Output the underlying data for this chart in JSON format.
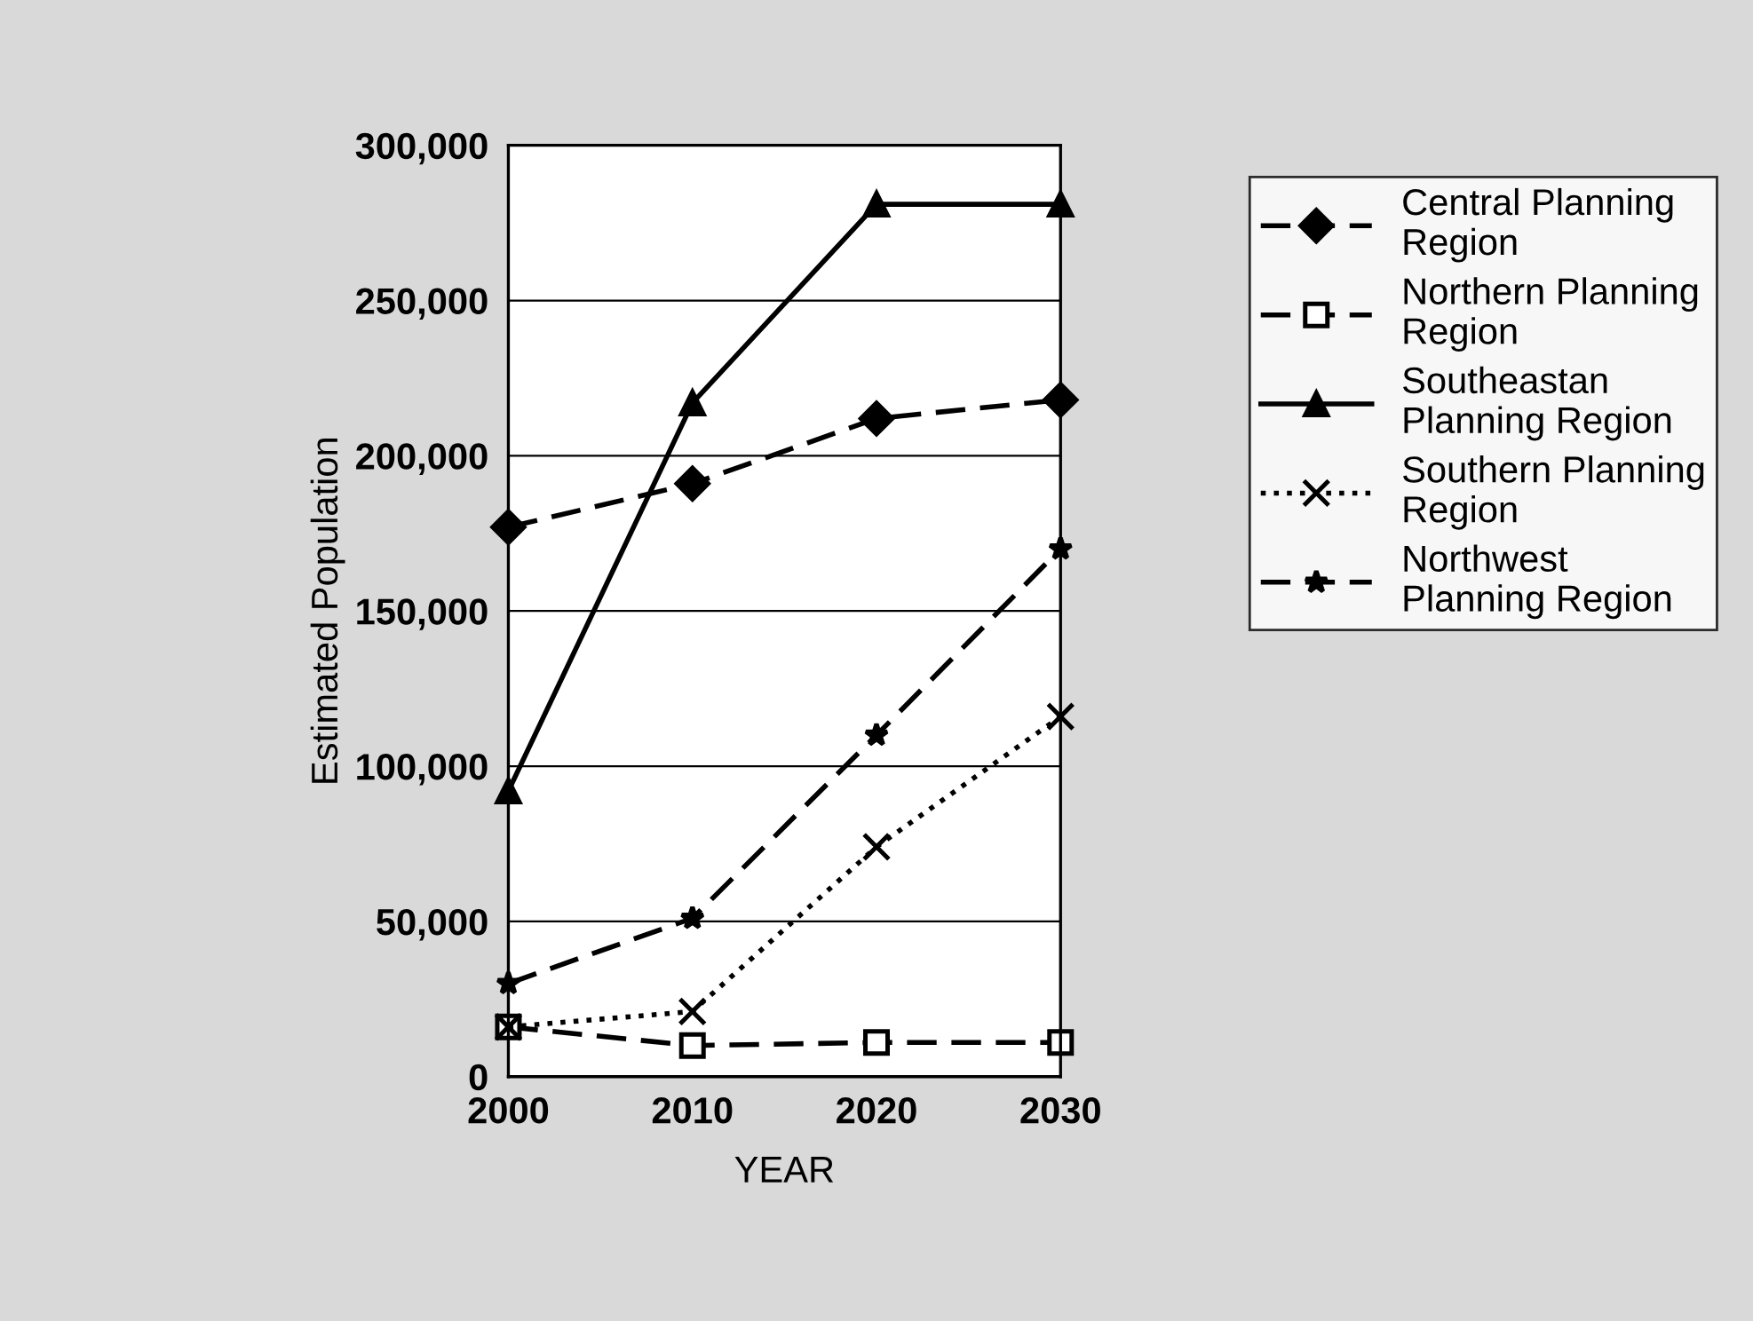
{
  "chart_data": {
    "type": "line",
    "xlabel": "YEAR",
    "ylabel": "Estimated Population",
    "x": [
      2000,
      2010,
      2020,
      2030
    ],
    "xlim": [
      2000,
      2030
    ],
    "xticks": [
      2000,
      2010,
      2020,
      2030
    ],
    "ylim": [
      0,
      300000
    ],
    "yticks": [
      {
        "value": 0,
        "label": "0"
      },
      {
        "value": 50000,
        "label": "50,000"
      },
      {
        "value": 100000,
        "label": "100,000"
      },
      {
        "value": 150000,
        "label": "150,000"
      },
      {
        "value": 200000,
        "label": "200,000"
      },
      {
        "value": 250000,
        "label": "250,000"
      },
      {
        "value": 300000,
        "label": "300,000"
      }
    ],
    "grid": "y",
    "legend": "right",
    "series": [
      {
        "name": "Central Planning Region",
        "color": "#000000",
        "marker": "diamond",
        "line_style": "dashed",
        "values": [
          177000,
          191000,
          212000,
          218000
        ]
      },
      {
        "name": "Northern Planning Region",
        "color": "#000000",
        "marker": "square",
        "line_style": "dashed",
        "values": [
          16000,
          10000,
          11000,
          11000
        ]
      },
      {
        "name": "Southeastan Planning Region",
        "color": "#000000",
        "marker": "triangle",
        "line_style": "solid",
        "values": [
          92000,
          217000,
          281000,
          281000
        ]
      },
      {
        "name": "Southern Planning Region",
        "color": "#000000",
        "marker": "cross",
        "line_style": "dotted",
        "values": [
          16000,
          21000,
          74000,
          116000
        ]
      },
      {
        "name": "Northwest Planning Region",
        "color": "#000000",
        "marker": "star",
        "line_style": "dashed",
        "values": [
          30000,
          51000,
          110000,
          170000
        ]
      }
    ]
  }
}
